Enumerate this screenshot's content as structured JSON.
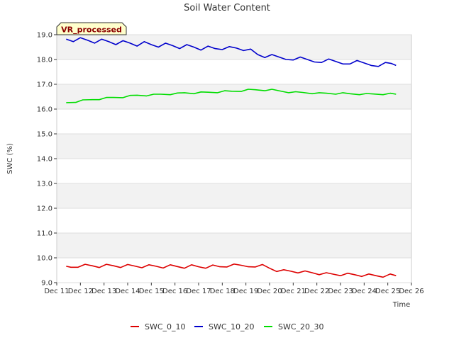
{
  "chart_data": {
    "type": "line",
    "title": "Soil Water Content",
    "xlabel": "Time",
    "ylabel": "SWC (%)",
    "badge": "VR_processed",
    "ylim": [
      9.0,
      19.0
    ],
    "xlim": [
      11,
      26
    ],
    "yticks": [
      9.0,
      10.0,
      11.0,
      12.0,
      13.0,
      14.0,
      15.0,
      16.0,
      17.0,
      18.0,
      19.0
    ],
    "ytick_labels": [
      "9.0",
      "10.0",
      "11.0",
      "12.0",
      "13.0",
      "14.0",
      "15.0",
      "16.0",
      "17.0",
      "18.0",
      "19.0"
    ],
    "xticks": [
      11,
      12,
      13,
      14,
      15,
      16,
      17,
      18,
      19,
      20,
      21,
      22,
      23,
      24,
      25,
      26
    ],
    "xtick_labels": [
      "Dec 11",
      "Dec 12",
      "Dec 13",
      "Dec 14",
      "Dec 15",
      "Dec 16",
      "Dec 17",
      "Dec 18",
      "Dec 19",
      "Dec 20",
      "Dec 21",
      "Dec 22",
      "Dec 23",
      "Dec 24",
      "Dec 25",
      "Dec 26"
    ],
    "legend_position": "bottom-center",
    "series": [
      {
        "name": "SWC_0_10",
        "color": "#dd0000",
        "x": [
          11.4,
          11.6,
          11.9,
          12.2,
          12.5,
          12.8,
          13.1,
          13.4,
          13.7,
          14.0,
          14.3,
          14.6,
          14.9,
          15.2,
          15.5,
          15.8,
          16.1,
          16.4,
          16.7,
          17.0,
          17.3,
          17.6,
          17.9,
          18.2,
          18.5,
          18.8,
          19.1,
          19.4,
          19.7,
          20.0,
          20.3,
          20.6,
          20.9,
          21.2,
          21.5,
          21.8,
          22.1,
          22.4,
          22.7,
          23.0,
          23.3,
          23.6,
          23.9,
          24.2,
          24.5,
          24.8,
          25.1,
          25.35
        ],
        "values": [
          9.66,
          9.62,
          9.62,
          9.74,
          9.68,
          9.61,
          9.74,
          9.68,
          9.61,
          9.73,
          9.67,
          9.6,
          9.72,
          9.66,
          9.59,
          9.72,
          9.65,
          9.58,
          9.72,
          9.64,
          9.58,
          9.71,
          9.64,
          9.63,
          9.75,
          9.7,
          9.64,
          9.63,
          9.73,
          9.58,
          9.45,
          9.52,
          9.46,
          9.39,
          9.47,
          9.4,
          9.32,
          9.4,
          9.34,
          9.28,
          9.38,
          9.32,
          9.25,
          9.35,
          9.28,
          9.22,
          9.35,
          9.28
        ]
      },
      {
        "name": "SWC_10_20",
        "color": "#0000cc",
        "x": [
          11.4,
          11.7,
          12.0,
          12.3,
          12.6,
          12.9,
          13.2,
          13.5,
          13.8,
          14.1,
          14.4,
          14.7,
          15.0,
          15.3,
          15.6,
          15.9,
          16.2,
          16.5,
          16.8,
          17.1,
          17.4,
          17.7,
          18.0,
          18.3,
          18.6,
          18.9,
          19.2,
          19.5,
          19.8,
          20.1,
          20.4,
          20.7,
          21.0,
          21.3,
          21.6,
          21.9,
          22.2,
          22.5,
          22.8,
          23.1,
          23.4,
          23.7,
          24.0,
          24.3,
          24.6,
          24.9,
          25.15,
          25.35
        ],
        "values": [
          18.82,
          18.72,
          18.88,
          18.78,
          18.66,
          18.82,
          18.72,
          18.6,
          18.76,
          18.66,
          18.54,
          18.72,
          18.6,
          18.5,
          18.66,
          18.56,
          18.44,
          18.6,
          18.5,
          18.38,
          18.54,
          18.44,
          18.4,
          18.52,
          18.46,
          18.36,
          18.42,
          18.2,
          18.08,
          18.2,
          18.1,
          18.0,
          17.98,
          18.1,
          18.0,
          17.9,
          17.88,
          18.02,
          17.92,
          17.82,
          17.82,
          17.96,
          17.86,
          17.76,
          17.72,
          17.88,
          17.84,
          17.76
        ]
      },
      {
        "name": "SWC_20_30",
        "color": "#00dd00",
        "x": [
          11.4,
          11.8,
          12.1,
          12.5,
          12.8,
          13.1,
          13.4,
          13.8,
          14.1,
          14.4,
          14.8,
          15.1,
          15.4,
          15.8,
          16.1,
          16.4,
          16.8,
          17.1,
          17.4,
          17.8,
          18.1,
          18.4,
          18.8,
          19.1,
          19.4,
          19.8,
          20.1,
          20.4,
          20.8,
          21.1,
          21.4,
          21.8,
          22.1,
          22.4,
          22.8,
          23.1,
          23.4,
          23.8,
          24.1,
          24.4,
          24.8,
          25.1,
          25.35
        ],
        "values": [
          16.26,
          16.27,
          16.37,
          16.38,
          16.38,
          16.47,
          16.47,
          16.46,
          16.55,
          16.56,
          16.53,
          16.6,
          16.6,
          16.58,
          16.65,
          16.66,
          16.62,
          16.69,
          16.68,
          16.66,
          16.74,
          16.72,
          16.71,
          16.8,
          16.78,
          16.74,
          16.8,
          16.74,
          16.66,
          16.7,
          16.67,
          16.62,
          16.66,
          16.64,
          16.6,
          16.66,
          16.62,
          16.58,
          16.63,
          16.61,
          16.58,
          16.64,
          16.6
        ]
      }
    ]
  }
}
